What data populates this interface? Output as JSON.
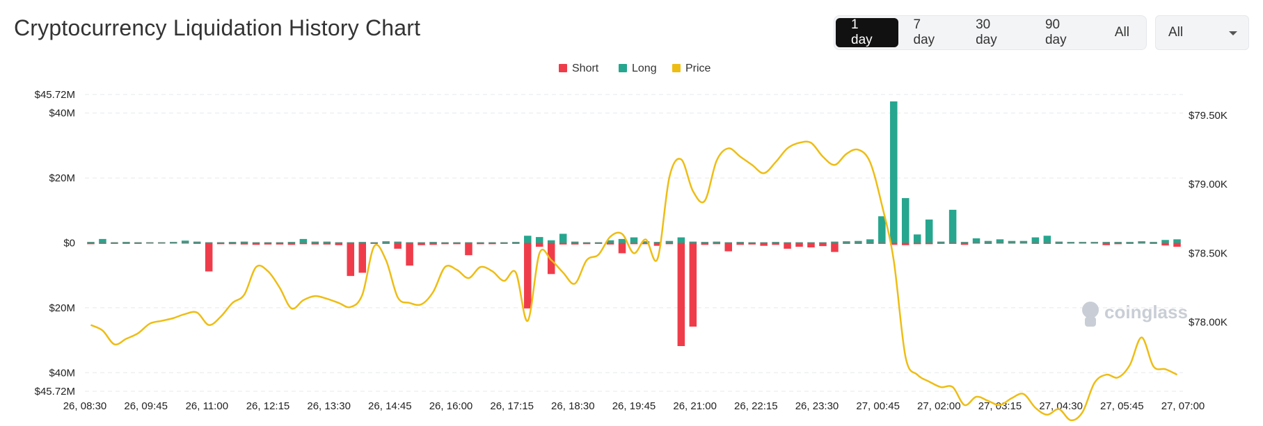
{
  "title": "Cryptocurrency Liquidation History Chart",
  "range_buttons": [
    "1 day",
    "7 day",
    "30 day",
    "90 day",
    "All"
  ],
  "active_range": "1 day",
  "coin_select": {
    "value": "All"
  },
  "colors": {
    "short": "#ef3c4b",
    "long": "#26a68e",
    "price": "#eebd14",
    "active_btn": "#111111"
  },
  "watermark": "coinglass",
  "chart_data": {
    "type": "bar",
    "legend": [
      "Short",
      "Long",
      "Price"
    ],
    "legend_position": "top-center",
    "x_ticks": [
      "26, 08:30",
      "26, 09:45",
      "26, 11:00",
      "26, 12:15",
      "26, 13:30",
      "26, 14:45",
      "26, 16:00",
      "26, 17:15",
      "26, 18:30",
      "26, 19:45",
      "26, 21:00",
      "26, 22:15",
      "26, 23:30",
      "27, 00:45",
      "27, 02:00",
      "27, 03:15",
      "27, 04:30",
      "27, 05:45",
      "27, 07:00"
    ],
    "left_axis": {
      "ticks": [
        45.72,
        40,
        20,
        0,
        -20,
        -40,
        -45.72
      ],
      "labels": [
        "$45.72M",
        "$40M",
        "$20M",
        "$0",
        "$20M",
        "$40M",
        "$45.72M"
      ],
      "ylim": [
        -45.72,
        45.72
      ],
      "unit": "M USD"
    },
    "right_axis": {
      "ticks": [
        79500,
        79000,
        78500,
        78000
      ],
      "labels": [
        "$79.50K",
        "$79.00K",
        "$78.50K",
        "$78.00K"
      ],
      "ylim": [
        77500,
        79650
      ]
    },
    "grid": "horizontal dashed",
    "series": [
      {
        "name": "Long",
        "values": [
          0.3,
          1.2,
          0.2,
          0.3,
          0.2,
          0.2,
          0.2,
          0.3,
          0.7,
          0.4,
          0.2,
          0.2,
          0.3,
          0.4,
          0.2,
          0.2,
          0.2,
          0.3,
          1.2,
          0.4,
          0.4,
          0.2,
          0.2,
          0.3,
          0.2,
          0.5,
          0.4,
          0.2,
          0.2,
          0.3,
          0.2,
          0.2,
          0.2,
          0.2,
          0.2,
          0.2,
          0.3,
          2.2,
          1.8,
          0.8,
          2.8,
          0.4,
          0.2,
          0.2,
          0.8,
          1.2,
          1.7,
          0.5,
          0.3,
          0.6,
          1.7,
          0.4,
          0.3,
          0.4,
          0.2,
          0.3,
          0.2,
          0.2,
          0.3,
          0.2,
          0.2,
          0.2,
          0.2,
          0.4,
          0.5,
          0.6,
          1.1,
          8.2,
          43.6,
          13.8,
          2.6,
          7.2,
          0.4,
          10.2,
          0.3,
          1.4,
          0.6,
          1.1,
          0.6,
          0.6,
          1.7,
          2.2,
          0.4,
          0.3,
          0.3,
          0.3,
          0.3,
          0.3,
          0.3,
          0.5,
          0.3,
          0.9,
          1.1
        ]
      },
      {
        "name": "Short",
        "values": [
          -0.4,
          -0.3,
          -0.3,
          -0.3,
          -0.3,
          -0.2,
          -0.2,
          -0.2,
          -0.2,
          -0.3,
          -8.8,
          -0.4,
          -0.4,
          -0.5,
          -0.6,
          -0.5,
          -0.5,
          -0.6,
          -0.4,
          -0.5,
          -0.5,
          -0.7,
          -10.2,
          -9.2,
          -0.3,
          -0.3,
          -1.8,
          -7.0,
          -0.7,
          -0.6,
          -0.4,
          -0.4,
          -3.8,
          -0.4,
          -0.4,
          -0.3,
          -0.3,
          -20.2,
          -1.2,
          -9.6,
          -0.5,
          -0.5,
          -0.4,
          -0.3,
          -0.5,
          -3.2,
          -0.4,
          -0.4,
          -0.9,
          -0.4,
          -31.8,
          -25.8,
          -0.6,
          -0.4,
          -2.6,
          -0.6,
          -0.5,
          -0.9,
          -0.6,
          -1.8,
          -1.2,
          -1.4,
          -1.0,
          -2.8,
          -0.3,
          -0.3,
          -0.3,
          -0.3,
          -0.6,
          -0.7,
          -0.4,
          -0.4,
          -0.3,
          -0.3,
          -0.6,
          -0.2,
          -0.3,
          -0.2,
          -0.2,
          -0.2,
          -0.3,
          -0.3,
          -0.3,
          -0.2,
          -0.2,
          -0.2,
          -0.7,
          -0.4,
          -0.3,
          -0.2,
          -0.3,
          -0.8,
          -1.2
        ]
      },
      {
        "name": "Price",
        "values": [
          77.98,
          77.94,
          77.84,
          77.88,
          77.92,
          77.99,
          78.01,
          78.03,
          78.06,
          78.07,
          77.98,
          78.04,
          78.14,
          78.2,
          78.4,
          78.37,
          78.25,
          78.1,
          78.16,
          78.19,
          78.17,
          78.14,
          78.11,
          78.2,
          78.55,
          78.45,
          78.18,
          78.14,
          78.13,
          78.22,
          78.4,
          78.38,
          78.32,
          78.4,
          78.37,
          78.3,
          78.36,
          78.01,
          78.5,
          78.45,
          78.36,
          78.28,
          78.45,
          78.49,
          78.62,
          78.64,
          78.5,
          78.6,
          78.46,
          79.05,
          79.18,
          78.95,
          78.88,
          79.17,
          79.26,
          79.2,
          79.14,
          79.08,
          79.16,
          79.26,
          79.3,
          79.3,
          79.2,
          79.14,
          79.22,
          79.25,
          79.16,
          78.85,
          78.45,
          77.75,
          77.62,
          77.57,
          77.53,
          77.53,
          77.4,
          77.46,
          77.43,
          77.4,
          77.45,
          77.48,
          77.38,
          77.33,
          77.37,
          77.29,
          77.35,
          77.56,
          77.62,
          77.6,
          77.69,
          77.89,
          77.68,
          77.66,
          77.62
        ]
      }
    ]
  }
}
